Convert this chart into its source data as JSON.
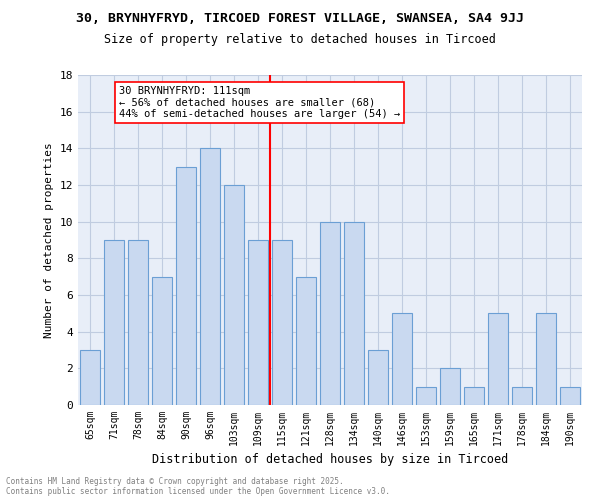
{
  "title1": "30, BRYNHYFRYD, TIRCOED FOREST VILLAGE, SWANSEA, SA4 9JJ",
  "title2": "Size of property relative to detached houses in Tircoed",
  "xlabel": "Distribution of detached houses by size in Tircoed",
  "ylabel": "Number of detached properties",
  "bins": [
    "65sqm",
    "71sqm",
    "78sqm",
    "84sqm",
    "90sqm",
    "96sqm",
    "103sqm",
    "109sqm",
    "115sqm",
    "121sqm",
    "128sqm",
    "134sqm",
    "140sqm",
    "146sqm",
    "153sqm",
    "159sqm",
    "165sqm",
    "171sqm",
    "178sqm",
    "184sqm",
    "190sqm"
  ],
  "values": [
    3,
    9,
    9,
    7,
    13,
    14,
    12,
    9,
    9,
    7,
    10,
    10,
    3,
    5,
    1,
    2,
    1,
    5,
    1,
    5,
    1
  ],
  "bar_color": "#c9d9f0",
  "bar_edge_color": "#6b9fd4",
  "grid_color": "#c0cce0",
  "background_color": "#e8eef8",
  "vline_color": "red",
  "vline_position": 7.5,
  "annotation_text": "30 BRYNHYFRYD: 111sqm\n← 56% of detached houses are smaller (68)\n44% of semi-detached houses are larger (54) →",
  "annotation_box_color": "white",
  "annotation_box_edge": "red",
  "ylim": [
    0,
    18
  ],
  "yticks": [
    0,
    2,
    4,
    6,
    8,
    10,
    12,
    14,
    16,
    18
  ],
  "footer1": "Contains HM Land Registry data © Crown copyright and database right 2025.",
  "footer2": "Contains public sector information licensed under the Open Government Licence v3.0."
}
